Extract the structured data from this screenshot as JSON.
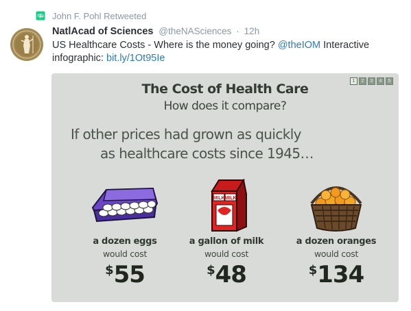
{
  "retweet": {
    "label": "John F. Pohl Retweeted"
  },
  "tweet": {
    "fullname": "NatlAcad of Sciences",
    "username": "@theNASciences",
    "separator": "·",
    "time": "12h",
    "text_part1": "US Healthcare Costs - Where is the money going? ",
    "mention": "@theIOM",
    "text_part2": " Interactive infographic: ",
    "link": "bit.ly/1Ot95Ie"
  },
  "infographic": {
    "title": "The Cost of Health Care",
    "subtitle": "How does it compare?",
    "intro_line1": "If other prices had grown as quickly",
    "intro_line2": "as healthcare costs since 1945…",
    "pages": [
      "1",
      "2",
      "3",
      "4",
      "5"
    ],
    "active_page": 1,
    "milk_carton_label": "MILK",
    "items": [
      {
        "name": "a dozen eggs",
        "note": "would cost",
        "currency": "$",
        "price": "55"
      },
      {
        "name": "a gallon of milk",
        "note": "would cost",
        "currency": "$",
        "price": "48"
      },
      {
        "name": "a dozen oranges",
        "note": "would cost",
        "currency": "$",
        "price": "134"
      }
    ]
  },
  "colors": {
    "retweet_green": "#19cf86",
    "link_blue": "#2b7bb9",
    "meta_gray": "#8899a6",
    "card_bg": "#d8dbd8",
    "avatar_gold": "#a48a55"
  }
}
